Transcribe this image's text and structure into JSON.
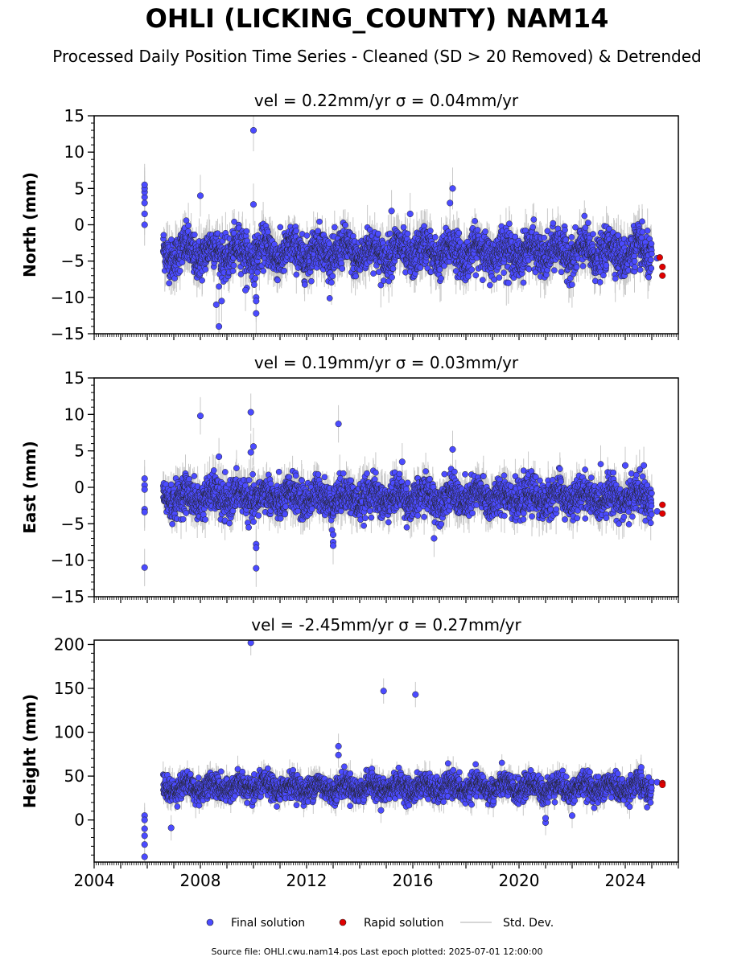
{
  "title": "OHLI (LICKING_COUNTY) NAM14",
  "subtitle": "Processed Daily Position Time Series - Cleaned (SD > 20 Removed) & Detrended",
  "footer": "Source file: OHLI.cwu.nam14.pos  Last epoch plotted: 2025-07-01 12:00:00",
  "colors": {
    "final": "#4b4bff",
    "rapid": "#e00000",
    "stddev": "#c8c8c8",
    "edge": "#222222"
  },
  "legend": {
    "final": "Final solution",
    "rapid": "Rapid solution",
    "stddev": "Std. Dev."
  },
  "chart_data": [
    {
      "type": "scatter",
      "title": "vel = 0.22mm/yr   σ = 0.04mm/yr",
      "ylabel": "North (mm)",
      "xlim": [
        2004,
        2026
      ],
      "ylim": [
        -15,
        15
      ],
      "yticks": [
        -15,
        -10,
        -5,
        0,
        5,
        10,
        15
      ],
      "ytick_labels": [
        "−15",
        "−10",
        "−5",
        "0",
        "5",
        "10",
        "15"
      ],
      "final_range": [
        2006.6,
        2025.0
      ],
      "final_center": -3.8,
      "final_spread": 1.7,
      "final_scatter_sd": 1.8,
      "final_outliers": [
        [
          2005.9,
          0.0
        ],
        [
          2005.9,
          1.5
        ],
        [
          2005.9,
          3.0
        ],
        [
          2005.9,
          3.8
        ],
        [
          2005.9,
          4.5
        ],
        [
          2005.9,
          5.0
        ],
        [
          2005.9,
          5.5
        ],
        [
          2008.0,
          4.0
        ],
        [
          2010.0,
          13.0
        ],
        [
          2010.0,
          2.8
        ],
        [
          2008.7,
          -14.0
        ],
        [
          2008.6,
          -11.0
        ],
        [
          2008.8,
          -10.5
        ],
        [
          2010.1,
          -10.0
        ],
        [
          2010.1,
          -10.5
        ],
        [
          2010.1,
          -12.2
        ],
        [
          2009.7,
          -9.0
        ],
        [
          2017.5,
          5.0
        ],
        [
          2017.4,
          3.0
        ],
        [
          2015.2,
          1.9
        ],
        [
          2015.9,
          1.5
        ],
        [
          2019.6,
          -8.0
        ]
      ],
      "rapid": [
        [
          2025.3,
          -4.5
        ],
        [
          2025.4,
          -5.8
        ],
        [
          2025.4,
          -7.0
        ]
      ],
      "rapid_final_tail": [
        [
          2025.2,
          -4.6
        ]
      ]
    },
    {
      "type": "scatter",
      "title": "vel = 0.19mm/yr   σ = 0.03mm/yr",
      "ylabel": "East (mm)",
      "xlim": [
        2004,
        2026
      ],
      "ylim": [
        -15,
        15
      ],
      "yticks": [
        -15,
        -10,
        -5,
        0,
        5,
        10,
        15
      ],
      "ytick_labels": [
        "−15",
        "−10",
        "−5",
        "0",
        "5",
        "10",
        "15"
      ],
      "final_range": [
        2006.6,
        2025.0
      ],
      "final_center": -1.4,
      "final_spread": 1.3,
      "final_scatter_sd": 1.6,
      "final_outliers": [
        [
          2005.9,
          1.2
        ],
        [
          2005.9,
          0.3
        ],
        [
          2005.9,
          -0.3
        ],
        [
          2005.9,
          -3.0
        ],
        [
          2005.9,
          -3.4
        ],
        [
          2005.9,
          -11.0
        ],
        [
          2008.0,
          9.8
        ],
        [
          2009.9,
          10.3
        ],
        [
          2010.0,
          5.6
        ],
        [
          2009.9,
          4.8
        ],
        [
          2013.2,
          8.7
        ],
        [
          2013.0,
          -6.5
        ],
        [
          2013.0,
          -7.5
        ],
        [
          2013.0,
          -8.0
        ],
        [
          2010.1,
          -7.8
        ],
        [
          2010.1,
          -8.3
        ],
        [
          2010.1,
          -11.1
        ],
        [
          2008.7,
          4.2
        ],
        [
          2017.5,
          5.2
        ],
        [
          2016.8,
          -7.0
        ],
        [
          2015.6,
          3.5
        ],
        [
          2024.0,
          3.0
        ],
        [
          2024.7,
          3.0
        ]
      ],
      "rapid": [
        [
          2025.4,
          -2.4
        ],
        [
          2025.4,
          -3.6
        ]
      ],
      "rapid_final_tail": [
        [
          2025.2,
          -3.3
        ]
      ]
    },
    {
      "type": "scatter",
      "title": "vel = -2.45mm/yr   σ = 0.27mm/yr",
      "ylabel": "Height (mm)",
      "xlim": [
        2004,
        2026
      ],
      "ylim": [
        -48,
        205
      ],
      "yticks": [
        0,
        50,
        100,
        150,
        200
      ],
      "ytick_labels": [
        "0",
        "50",
        "100",
        "150",
        "200"
      ],
      "final_range": [
        2006.6,
        2025.0
      ],
      "final_center": 37,
      "final_spread": 8,
      "final_scatter_sd": 9,
      "final_outliers": [
        [
          2009.9,
          202
        ],
        [
          2014.9,
          147
        ],
        [
          2016.1,
          143
        ],
        [
          2013.2,
          84
        ],
        [
          2013.2,
          74
        ],
        [
          2005.9,
          5
        ],
        [
          2005.9,
          0
        ],
        [
          2005.9,
          -10
        ],
        [
          2005.9,
          -18
        ],
        [
          2005.9,
          -28
        ],
        [
          2005.9,
          -42
        ],
        [
          2006.9,
          -9
        ],
        [
          2021.0,
          -3
        ],
        [
          2021.0,
          2
        ],
        [
          2022.0,
          5
        ],
        [
          2014.8,
          11
        ],
        [
          2024.6,
          60
        ]
      ],
      "rapid": [
        [
          2025.4,
          42
        ],
        [
          2025.4,
          40
        ]
      ],
      "rapid_final_tail": [
        [
          2025.2,
          43
        ]
      ]
    }
  ],
  "xticks": [
    2004,
    2008,
    2012,
    2016,
    2020,
    2024
  ],
  "xtick_labels": [
    "2004",
    "2008",
    "2012",
    "2016",
    "2020",
    "2024"
  ]
}
